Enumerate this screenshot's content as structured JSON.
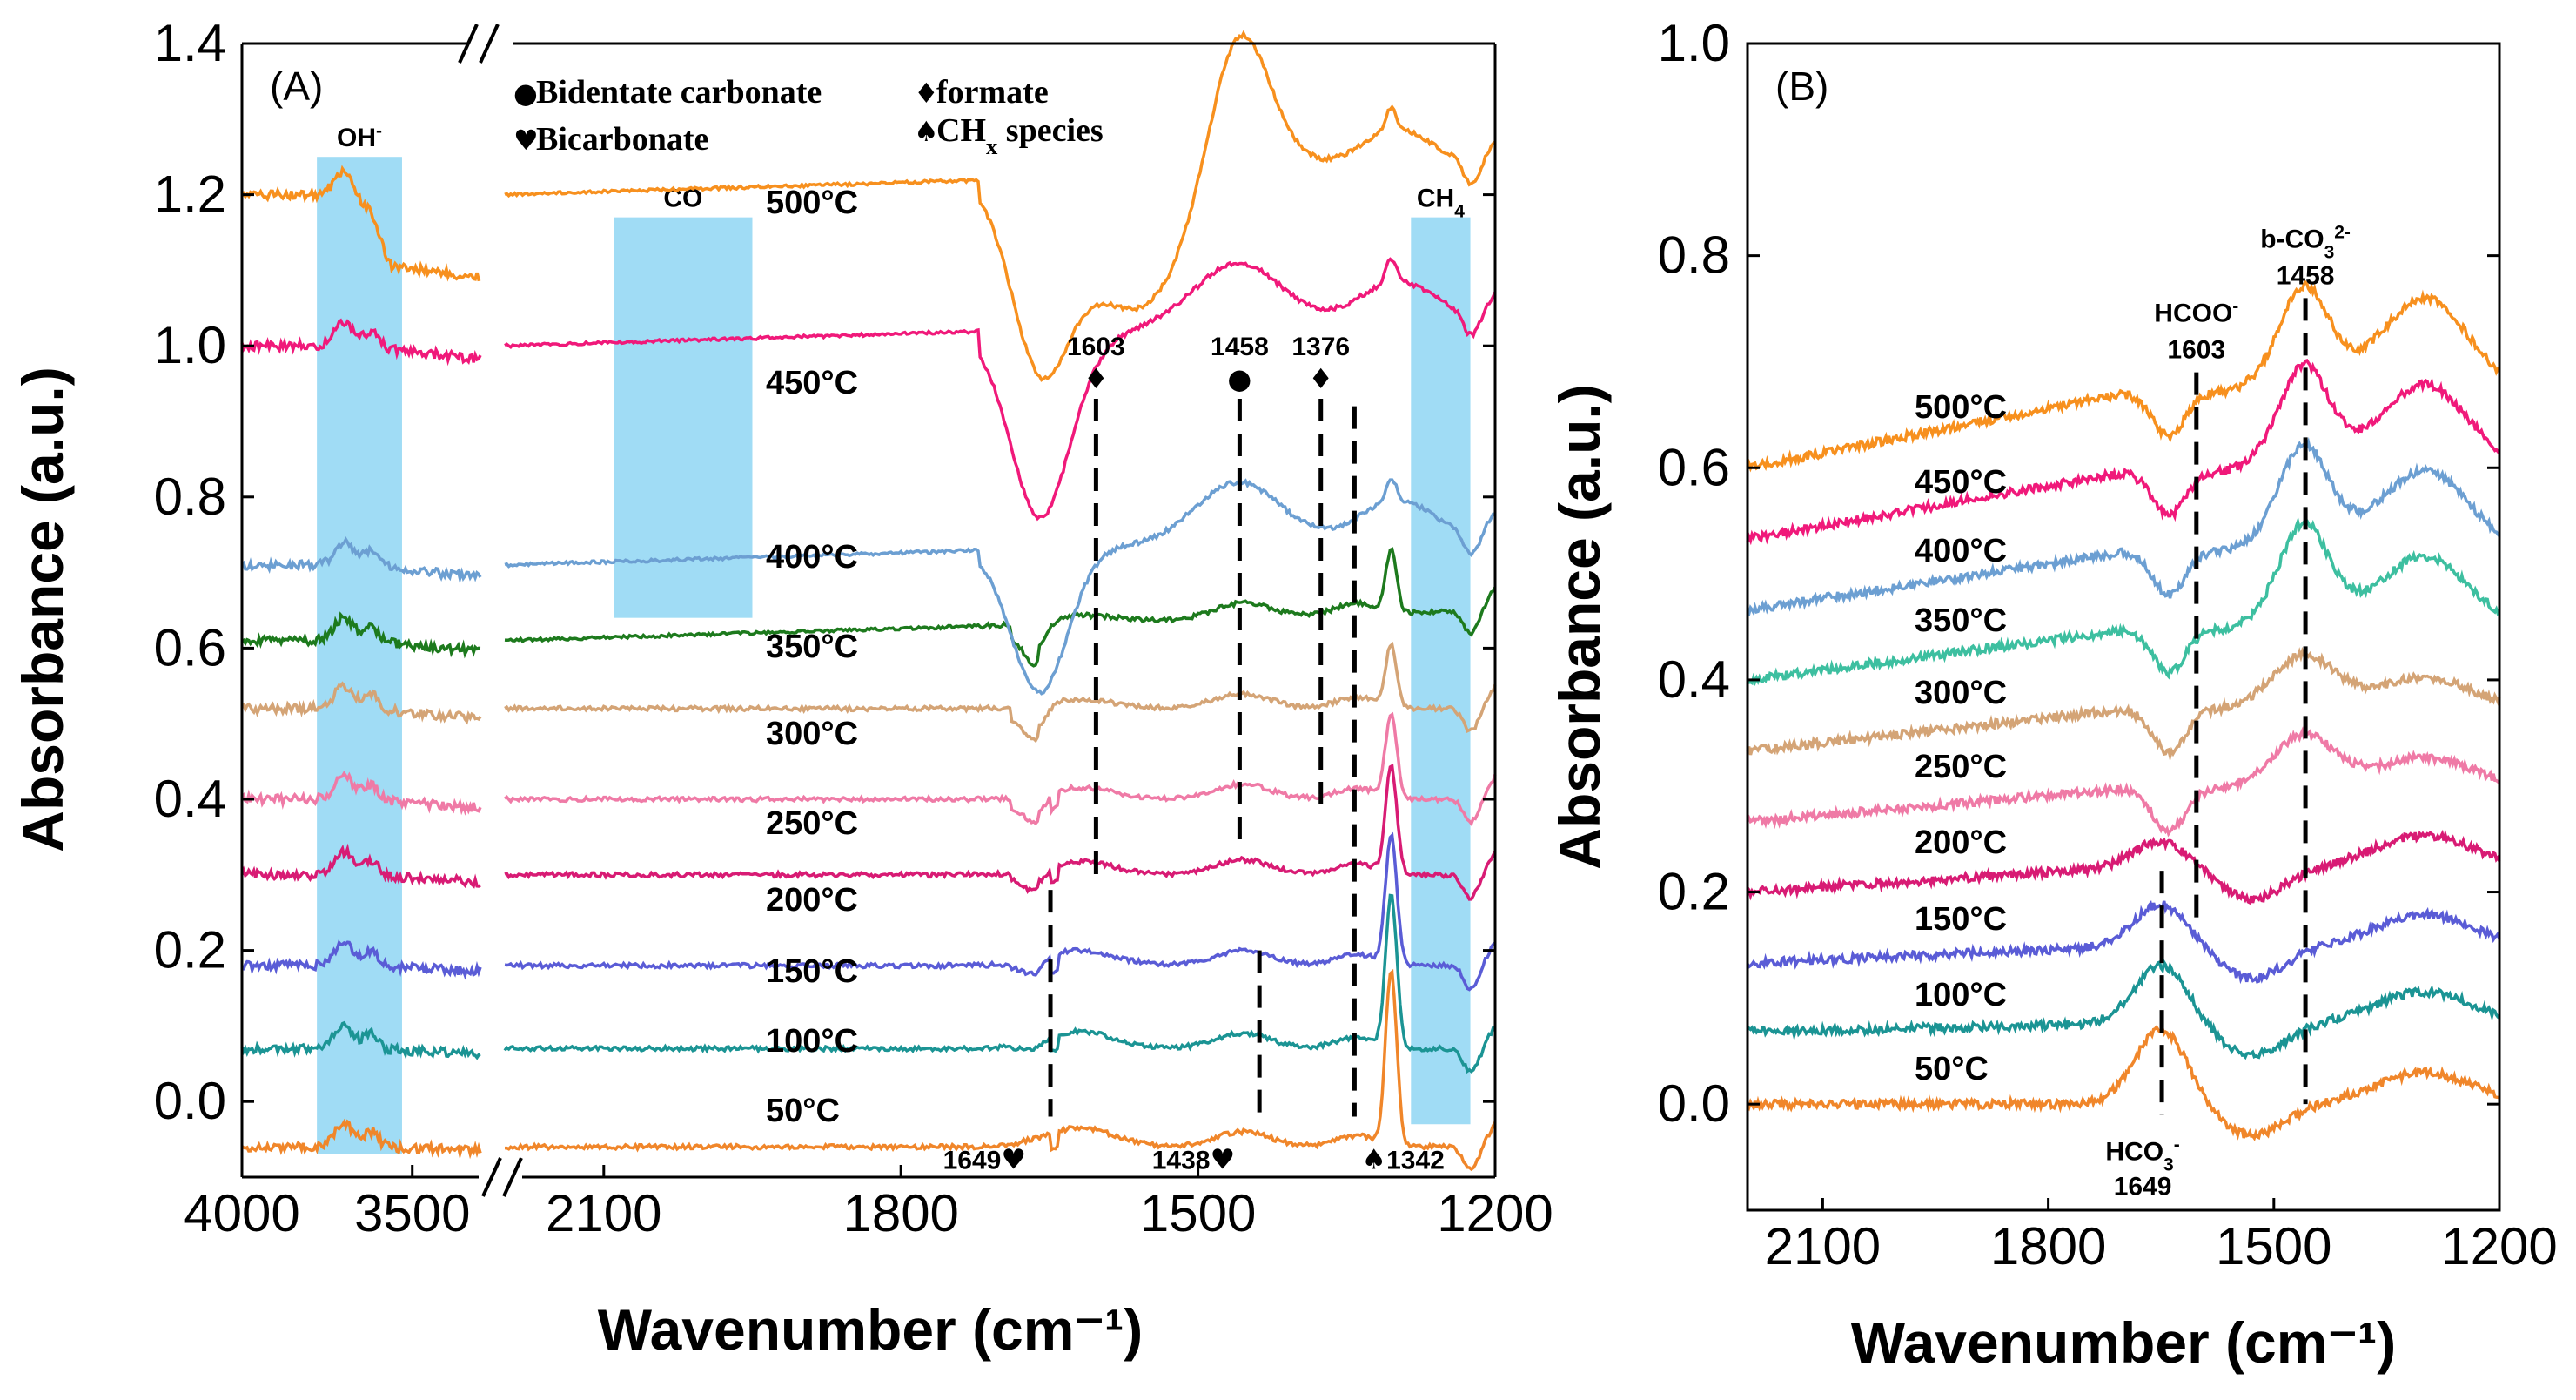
{
  "chart_data": [
    {
      "panel": "(A)",
      "type": "line",
      "xlabel": "Wavenumber (cm⁻¹)",
      "ylabel": "Absorbance (a.u.)",
      "xlim": [
        4000,
        1200
      ],
      "x_break": [
        3300,
        2200
      ],
      "ylim": [
        -0.1,
        1.4
      ],
      "xticks": [
        "4000",
        "3500",
        "2100",
        "1800",
        "1500",
        "1200"
      ],
      "yticks": [
        "0.0",
        "0.2",
        "0.4",
        "0.6",
        "0.8",
        "1.0",
        "1.2",
        "1.4"
      ],
      "legend": [
        {
          "symbol": "●",
          "label": "Bidentate carbonate"
        },
        {
          "symbol": "♦",
          "label": "formate"
        },
        {
          "symbol": "♥",
          "label": "Bicarbonate"
        },
        {
          "symbol": "♠",
          "label": "CH",
          "sub": "x",
          "after": " species"
        }
      ],
      "regions": [
        {
          "label": "OH",
          "sup": "-",
          "from": 3780,
          "to": 3530
        },
        {
          "label": "CO",
          "sup": "",
          "from": 2090,
          "to": 1950
        },
        {
          "label": "CH",
          "sub": "4",
          "from": 1285,
          "to": 1225
        }
      ],
      "peaks": [
        {
          "label": "1603",
          "symbol": "♦",
          "x": 1603,
          "y_from": 0.93,
          "y_to": 0.3,
          "text_pos": "top"
        },
        {
          "label": "1458",
          "symbol": "●",
          "x": 1458,
          "y_from": 0.93,
          "y_to": 0.34,
          "text_pos": "top"
        },
        {
          "label": "1376",
          "symbol": "♦",
          "x": 1376,
          "y_from": 0.93,
          "y_to": 0.38,
          "text_pos": "top"
        },
        {
          "label": "1649",
          "symbol": "♥",
          "x": 1649,
          "y_from": 0.28,
          "y_to": -0.02,
          "text_pos": "bottom"
        },
        {
          "label": "1438",
          "symbol": "♥",
          "x": 1438,
          "y_from": 0.2,
          "y_to": -0.02,
          "text_pos": "bottom"
        },
        {
          "label": "1342",
          "symbol": "♠",
          "x": 1342,
          "y_from": 0.92,
          "y_to": -0.02,
          "text_pos": "bottom"
        }
      ],
      "series": [
        {
          "name": "50°C",
          "color": "#f0862a",
          "offset": -0.06
        },
        {
          "name": "100°C",
          "color": "#1b9494",
          "offset": 0.07
        },
        {
          "name": "150°C",
          "color": "#5a5cd6",
          "offset": 0.18
        },
        {
          "name": "200°C",
          "color": "#d81b74",
          "offset": 0.3
        },
        {
          "name": "250°C",
          "color": "#ef7aa6",
          "offset": 0.4
        },
        {
          "name": "300°C",
          "color": "#d4a476",
          "offset": 0.52
        },
        {
          "name": "350°C",
          "color": "#1d7a1d",
          "offset": 0.61
        },
        {
          "name": "400°C",
          "color": "#6c9fd2",
          "offset": 0.71
        },
        {
          "name": "450°C",
          "color": "#f0197a",
          "offset": 1.0
        },
        {
          "name": "500°C",
          "color": "#f7901e",
          "offset": 1.2
        }
      ]
    },
    {
      "panel": "(B)",
      "type": "line",
      "xlabel": "Wavenumber (cm⁻¹)",
      "ylabel": "Absorbance (a.u.)",
      "xlim": [
        2200,
        1200
      ],
      "ylim": [
        -0.1,
        1.0
      ],
      "xticks": [
        "2100",
        "1800",
        "1500",
        "1200"
      ],
      "yticks": [
        "0.0",
        "0.2",
        "0.4",
        "0.6",
        "0.8",
        "1.0"
      ],
      "peaks": [
        {
          "label": "1603",
          "name": "HCOO",
          "sup": "-",
          "x": 1603,
          "y_from": 0.69,
          "y_to": 0.17,
          "text_pos": "top"
        },
        {
          "label": "1458",
          "name": "b-CO",
          "sub": "3",
          "sup": "2-",
          "x": 1458,
          "y_from": 0.76,
          "y_to": 0.0,
          "text_pos": "top"
        },
        {
          "label": "1649",
          "name": "HCO",
          "sub": "3",
          "sup": "-",
          "x": 1649,
          "y_from": 0.22,
          "y_to": -0.01,
          "text_pos": "bottom"
        }
      ],
      "series": [
        {
          "name": "50°C",
          "color": "#f0862a",
          "offset": 0.0
        },
        {
          "name": "100°C",
          "color": "#1b9494",
          "offset": 0.068
        },
        {
          "name": "150°C",
          "color": "#5a5cd6",
          "offset": 0.133
        },
        {
          "name": "200°C",
          "color": "#d81b74",
          "offset": 0.2
        },
        {
          "name": "250°C",
          "color": "#ef7aa6",
          "offset": 0.266
        },
        {
          "name": "300°C",
          "color": "#d4a476",
          "offset": 0.333
        },
        {
          "name": "350°C",
          "color": "#3dbfa0",
          "offset": 0.4
        },
        {
          "name": "400°C",
          "color": "#6c9fd2",
          "offset": 0.466
        },
        {
          "name": "450°C",
          "color": "#f0197a",
          "offset": 0.533
        },
        {
          "name": "500°C",
          "color": "#f7901e",
          "offset": 0.6
        }
      ]
    }
  ]
}
